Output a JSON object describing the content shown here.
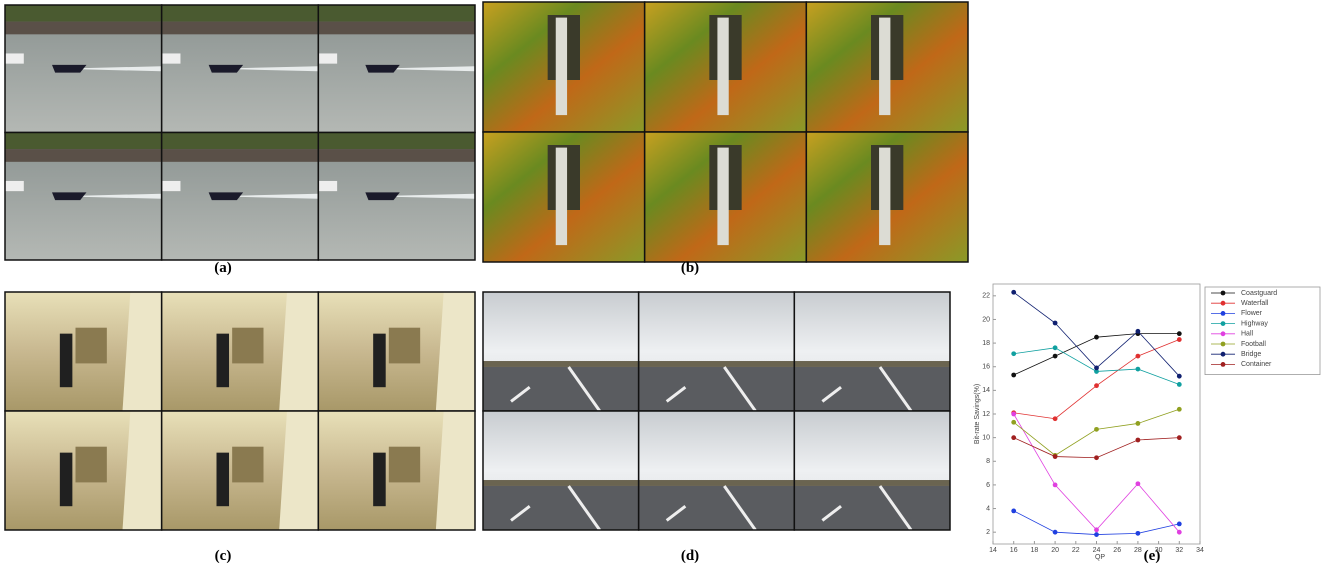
{
  "panels": [
    {
      "label": "(a)"
    },
    {
      "label": "(b)"
    },
    {
      "label": "(c)"
    },
    {
      "label": "(d)"
    },
    {
      "label": "(e)"
    }
  ],
  "chart_data": {
    "type": "line",
    "x_label": "QP",
    "y_label": "Bit-rate Savings(%)",
    "x": [
      16,
      20,
      24,
      28,
      32
    ],
    "xlim": [
      14,
      34
    ],
    "xticks": [
      14,
      16,
      18,
      20,
      22,
      24,
      26,
      28,
      30,
      32,
      34
    ],
    "ylim": [
      1,
      23
    ],
    "yticks": [
      2,
      4,
      6,
      8,
      10,
      12,
      14,
      16,
      18,
      20,
      22
    ],
    "legend": "upper right",
    "series": [
      {
        "name": "Coastguard",
        "color": "#111111",
        "values": [
          15.3,
          16.9,
          18.5,
          18.8,
          18.8
        ]
      },
      {
        "name": "Waterfall",
        "color": "#e03030",
        "values": [
          12.1,
          11.6,
          14.4,
          16.9,
          18.3
        ]
      },
      {
        "name": "Flower",
        "color": "#2040e0",
        "values": [
          3.8,
          2.0,
          1.8,
          1.9,
          2.7
        ]
      },
      {
        "name": "Highway",
        "color": "#10a0a0",
        "values": [
          17.1,
          17.6,
          15.6,
          15.8,
          14.5
        ]
      },
      {
        "name": "Hall",
        "color": "#e040e0",
        "values": [
          12.0,
          6.0,
          2.2,
          6.1,
          2.0
        ]
      },
      {
        "name": "Football",
        "color": "#90a020",
        "values": [
          11.3,
          8.5,
          10.7,
          11.2,
          12.4
        ]
      },
      {
        "name": "Bridge",
        "color": "#102070",
        "values": [
          22.3,
          19.7,
          15.9,
          19.0,
          15.2
        ]
      },
      {
        "name": "Container",
        "color": "#a02020",
        "values": [
          10.0,
          8.4,
          8.3,
          9.8,
          10.0
        ]
      }
    ]
  }
}
